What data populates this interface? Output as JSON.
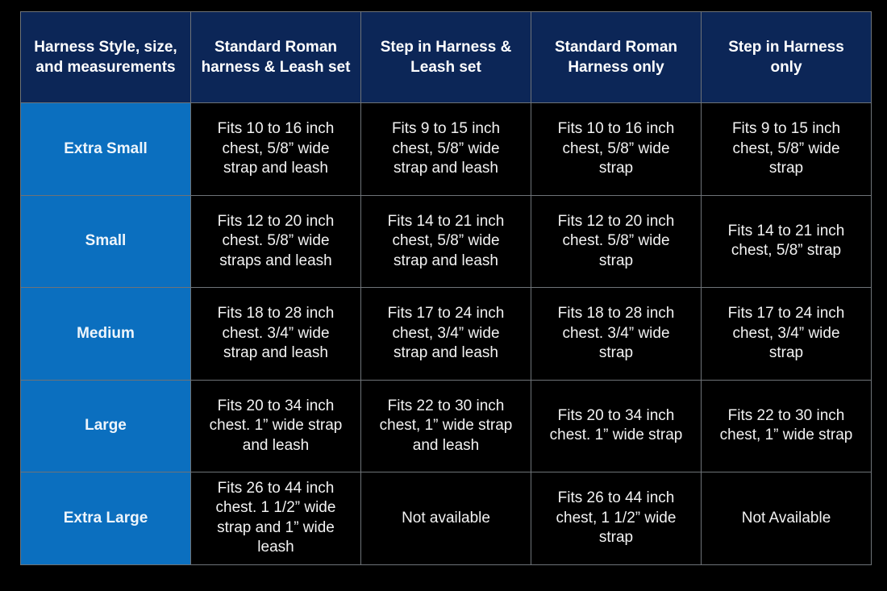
{
  "colors": {
    "header_bg": "#0c2657",
    "size_column_bg": "#0b6fbf",
    "cell_bg": "#000000",
    "border": "#6e7378"
  },
  "headers": [
    "Harness Style, size,\nand measurements",
    "Standard Roman\nharness & Leash set",
    "Step in Harness &\nLeash set",
    "Standard Roman\nHarness only",
    "Step in Harness\nonly"
  ],
  "rows": [
    {
      "size": "Extra Small",
      "cells": [
        "Fits 10 to 16 inch\nchest, 5/8” wide\nstrap and leash",
        "Fits 9 to 15 inch\nchest, 5/8” wide\nstrap and leash",
        "Fits 10 to 16 inch\nchest, 5/8” wide\nstrap",
        "Fits 9 to 15 inch\nchest, 5/8” wide\nstrap"
      ]
    },
    {
      "size": "Small",
      "cells": [
        "Fits 12 to 20 inch\nchest. 5/8” wide\nstraps and leash",
        "Fits 14 to 21 inch\nchest, 5/8” wide\nstrap and leash",
        "Fits 12 to 20 inch\nchest. 5/8” wide\nstrap",
        "Fits 14 to 21 inch\nchest, 5/8” strap"
      ]
    },
    {
      "size": "Medium",
      "cells": [
        "Fits 18 to 28 inch\nchest. 3/4” wide\nstrap and leash",
        "Fits 17 to 24 inch\nchest, 3/4” wide\nstrap and leash",
        "Fits 18 to 28 inch\nchest. 3/4” wide\nstrap",
        "Fits 17 to 24 inch\nchest, 3/4” wide\nstrap"
      ]
    },
    {
      "size": "Large",
      "cells": [
        "Fits 20 to 34 inch\nchest. 1” wide strap\nand leash",
        "Fits 22 to 30 inch\nchest, 1” wide strap\nand leash",
        "Fits 20 to 34 inch\nchest. 1” wide strap",
        "Fits 22 to 30 inch\nchest, 1” wide strap"
      ]
    },
    {
      "size": "Extra Large",
      "cells": [
        "Fits 26 to 44 inch\nchest. 1 1/2” wide\nstrap and 1” wide\nleash",
        "Not available",
        "Fits 26 to 44 inch\nchest, 1 1/2” wide\nstrap",
        "Not Available"
      ]
    }
  ]
}
